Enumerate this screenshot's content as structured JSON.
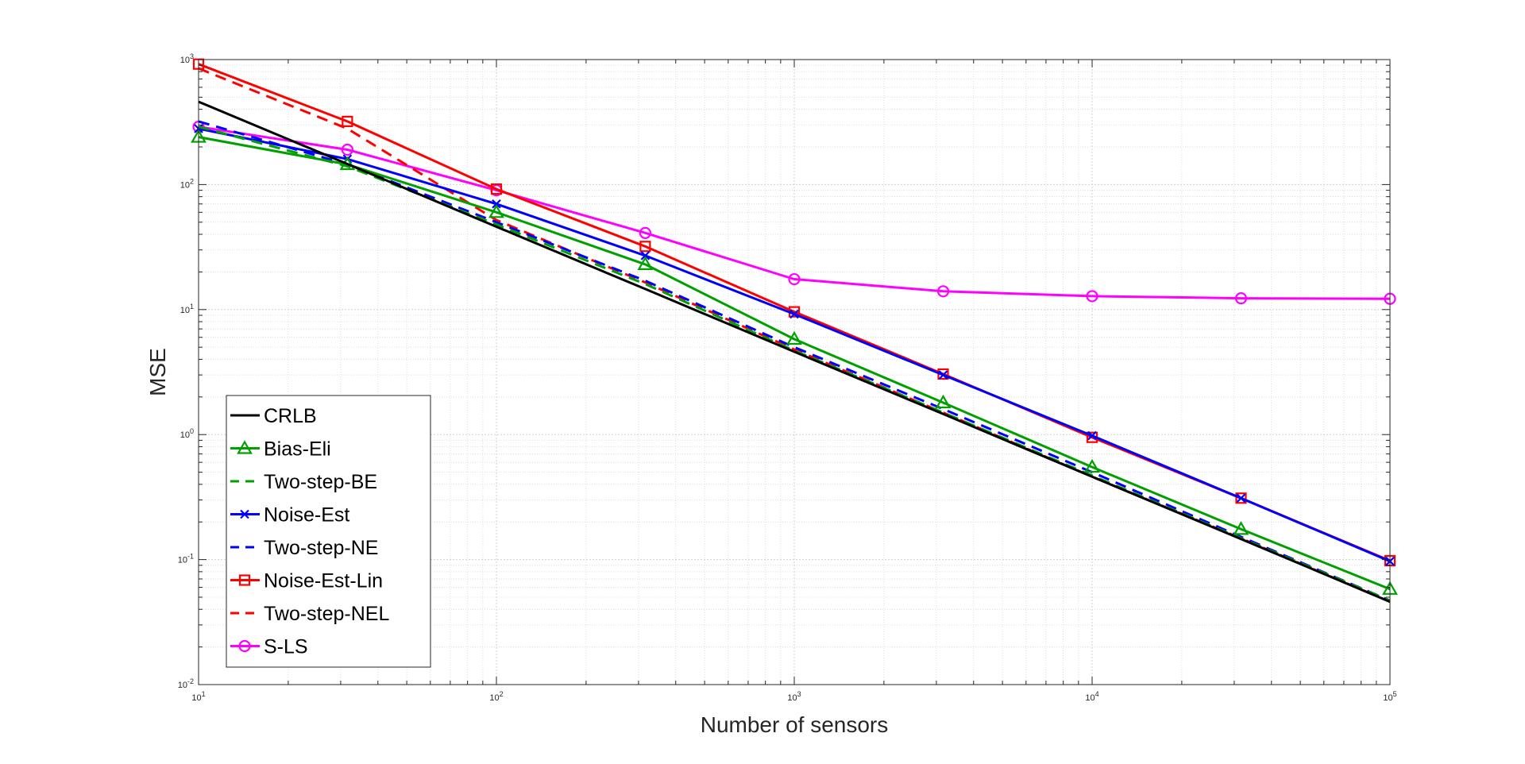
{
  "chart_data": {
    "type": "line",
    "title": "",
    "xlabel": "Number of sensors",
    "ylabel": "MSE",
    "x_scale": "log",
    "y_scale": "log",
    "xlim": [
      10,
      100000
    ],
    "ylim": [
      0.01,
      1000
    ],
    "x_ticks": [
      10,
      100,
      1000,
      10000,
      100000
    ],
    "x_tick_labels": [
      {
        "base": "10",
        "exp": "1"
      },
      {
        "base": "10",
        "exp": "2"
      },
      {
        "base": "10",
        "exp": "3"
      },
      {
        "base": "10",
        "exp": "4"
      },
      {
        "base": "10",
        "exp": "5"
      }
    ],
    "y_ticks": [
      0.01,
      0.1,
      1,
      10,
      100,
      1000
    ],
    "y_tick_labels": [
      {
        "base": "10",
        "exp": "-2"
      },
      {
        "base": "10",
        "exp": "-1"
      },
      {
        "base": "10",
        "exp": "0"
      },
      {
        "base": "10",
        "exp": "1"
      },
      {
        "base": "10",
        "exp": "2"
      },
      {
        "base": "10",
        "exp": "3"
      }
    ],
    "grid": true,
    "minor_grid": true,
    "legend_position": "bottom-left",
    "x": [
      10,
      31.6,
      100,
      316,
      1000,
      3162,
      10000,
      31623,
      100000
    ],
    "series": [
      {
        "name": "CRLB",
        "color": "#000000",
        "dash": "solid",
        "marker": "none",
        "values": [
          460,
          146,
          46,
          14.6,
          4.6,
          1.46,
          0.46,
          0.146,
          0.046
        ]
      },
      {
        "name": "Bias-Eli",
        "color": "#00a000",
        "dash": "solid",
        "marker": "triangle",
        "values": [
          240,
          145,
          60,
          23,
          5.8,
          1.8,
          0.55,
          0.175,
          0.058
        ]
      },
      {
        "name": "Two-step-BE",
        "color": "#00a000",
        "dash": "dashed",
        "marker": "none",
        "values": [
          290,
          140,
          48,
          16,
          4.7,
          1.5,
          0.47,
          0.148,
          0.047
        ]
      },
      {
        "name": "Noise-Est",
        "color": "#0000ff",
        "dash": "solid",
        "marker": "x",
        "values": [
          280,
          160,
          70,
          27,
          9.2,
          3.0,
          0.98,
          0.31,
          0.097
        ]
      },
      {
        "name": "Two-step-NE",
        "color": "#0000ff",
        "dash": "dashed",
        "marker": "none",
        "values": [
          320,
          145,
          50,
          17,
          5.0,
          1.6,
          0.5,
          0.152,
          0.047
        ]
      },
      {
        "name": "Noise-Est-Lin",
        "color": "#ff0000",
        "dash": "solid",
        "marker": "square",
        "values": [
          920,
          320,
          92,
          32,
          9.6,
          3.05,
          0.95,
          0.31,
          0.098
        ]
      },
      {
        "name": "Two-step-NEL",
        "color": "#ff0000",
        "dash": "dashed",
        "marker": "none",
        "values": [
          850,
          280,
          52,
          16.5,
          4.8,
          1.5,
          0.46,
          0.148,
          0.046
        ]
      },
      {
        "name": "S-LS",
        "color": "#ff00ff",
        "dash": "solid",
        "marker": "circle",
        "values": [
          290,
          190,
          90,
          41,
          17.5,
          14,
          12.8,
          12.3,
          12.2
        ]
      }
    ]
  }
}
